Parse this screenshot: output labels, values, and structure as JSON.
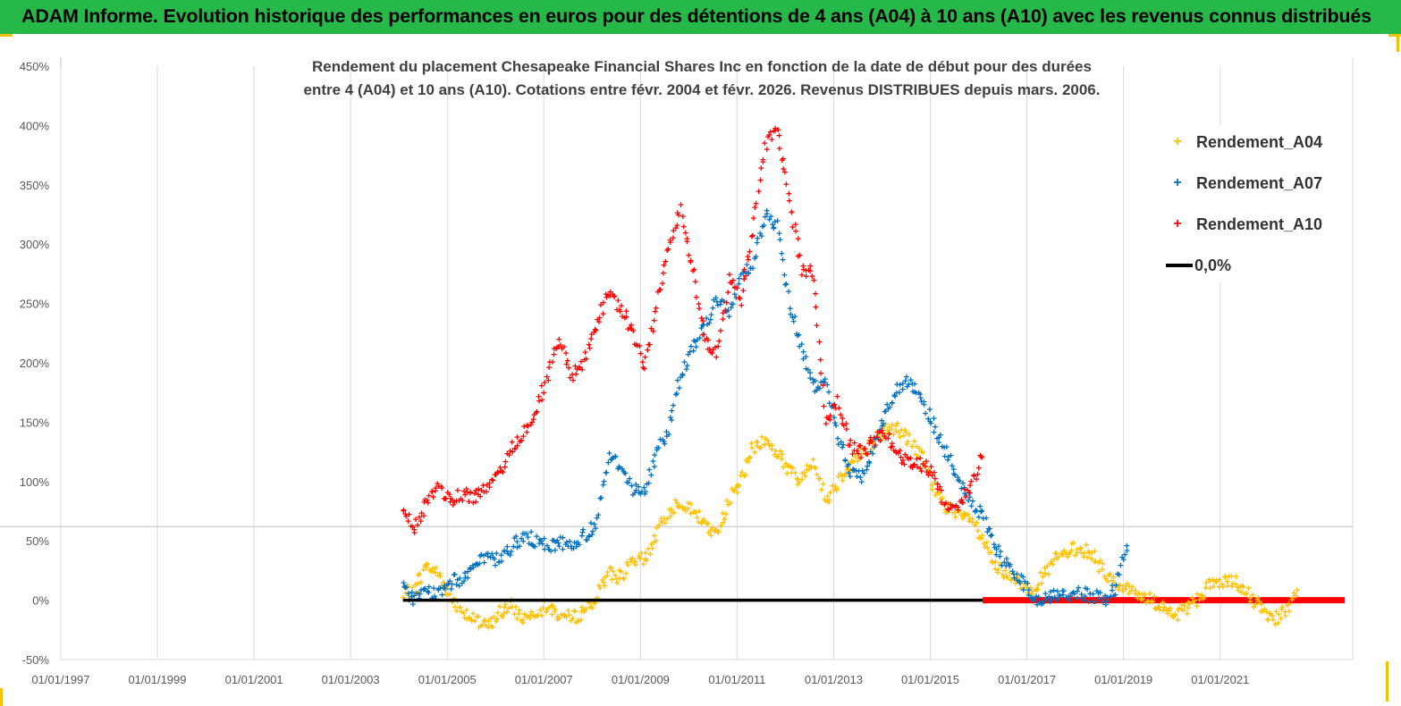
{
  "header": {
    "title": "ADAM Informe. Evolution historique des performances en euros pour des détentions de 4 ans (A04) à 10 ans (A10) avec les revenus connus distribués"
  },
  "colors": {
    "header_bg": "#27b84a",
    "a04": "#ffc000",
    "a07": "#0070c0",
    "a10": "#ff0000",
    "zero": "#000000"
  },
  "chart_data": {
    "type": "scatter",
    "title_lines": [
      "Rendement du placement Chesapeake Financial Shares Inc en fonction de la date de début pour des durées",
      "entre 4 (A04) et 10 ans (A10). Cotations entre févr. 2004 et févr. 2026. Revenus DISTRIBUES depuis mars. 2006."
    ],
    "x_ticks": [
      "01/01/1997",
      "01/01/1999",
      "01/01/2001",
      "01/01/2003",
      "01/01/2005",
      "01/01/2007",
      "01/01/2009",
      "01/01/2011",
      "01/01/2013",
      "01/01/2015",
      "01/01/2017",
      "01/01/2019",
      "01/01/2021"
    ],
    "y_ticks": [
      "-50%",
      "0%",
      "50%",
      "100%",
      "150%",
      "200%",
      "250%",
      "300%",
      "350%",
      "400%",
      "450%"
    ],
    "xlim": [
      "1997-01-01",
      "2023-09-30"
    ],
    "ylim": [
      -0.5,
      4.5
    ],
    "grid": "vertical",
    "legend_position": "top-right",
    "series": [
      {
        "name": "Rendement_A04",
        "marker": "+",
        "color": "#ffc000",
        "points": [
          [
            "2004-02",
            0.05
          ],
          [
            "2004-05",
            0.1
          ],
          [
            "2004-08",
            0.3
          ],
          [
            "2004-11",
            0.22
          ],
          [
            "2005-02",
            0.02
          ],
          [
            "2005-05",
            -0.08
          ],
          [
            "2005-08",
            -0.18
          ],
          [
            "2005-11",
            -0.22
          ],
          [
            "2006-02",
            -0.1
          ],
          [
            "2006-05",
            -0.05
          ],
          [
            "2006-08",
            -0.15
          ],
          [
            "2006-11",
            -0.08
          ],
          [
            "2007-02",
            -0.05
          ],
          [
            "2007-05",
            -0.12
          ],
          [
            "2007-08",
            -0.15
          ],
          [
            "2007-11",
            -0.08
          ],
          [
            "2008-02",
            0.02
          ],
          [
            "2008-05",
            0.25
          ],
          [
            "2008-08",
            0.2
          ],
          [
            "2008-11",
            0.32
          ],
          [
            "2009-02",
            0.35
          ],
          [
            "2009-05",
            0.55
          ],
          [
            "2009-08",
            0.75
          ],
          [
            "2009-11",
            0.85
          ],
          [
            "2010-02",
            0.75
          ],
          [
            "2010-05",
            0.65
          ],
          [
            "2010-08",
            0.55
          ],
          [
            "2010-11",
            0.85
          ],
          [
            "2011-02",
            1.0
          ],
          [
            "2011-05",
            1.3
          ],
          [
            "2011-08",
            1.35
          ],
          [
            "2011-11",
            1.25
          ],
          [
            "2012-02",
            1.1
          ],
          [
            "2012-05",
            1.0
          ],
          [
            "2012-08",
            1.2
          ],
          [
            "2012-11",
            0.85
          ],
          [
            "2013-02",
            1.0
          ],
          [
            "2013-05",
            1.15
          ],
          [
            "2013-08",
            1.25
          ],
          [
            "2013-11",
            1.35
          ],
          [
            "2014-02",
            1.45
          ],
          [
            "2014-05",
            1.45
          ],
          [
            "2014-08",
            1.35
          ],
          [
            "2014-11",
            1.2
          ],
          [
            "2015-02",
            0.95
          ],
          [
            "2015-05",
            0.8
          ],
          [
            "2015-08",
            0.7
          ],
          [
            "2015-11",
            0.7
          ],
          [
            "2016-02",
            0.5
          ],
          [
            "2016-05",
            0.3
          ],
          [
            "2016-08",
            0.2
          ],
          [
            "2016-11",
            0.15
          ],
          [
            "2017-02",
            0.1
          ],
          [
            "2017-05",
            0.2
          ],
          [
            "2017-08",
            0.35
          ],
          [
            "2017-11",
            0.4
          ],
          [
            "2018-02",
            0.45
          ],
          [
            "2018-05",
            0.4
          ],
          [
            "2018-08",
            0.25
          ],
          [
            "2018-11",
            0.15
          ],
          [
            "2019-02",
            0.1
          ],
          [
            "2019-05",
            0.05
          ],
          [
            "2019-08",
            0.0
          ],
          [
            "2019-11",
            -0.05
          ],
          [
            "2020-02",
            -0.15
          ],
          [
            "2020-05",
            -0.05
          ],
          [
            "2020-08",
            0.05
          ],
          [
            "2020-11",
            0.15
          ],
          [
            "2021-02",
            0.15
          ],
          [
            "2021-05",
            0.15
          ],
          [
            "2021-08",
            0.05
          ],
          [
            "2021-11",
            -0.05
          ],
          [
            "2022-02",
            -0.15
          ],
          [
            "2022-05",
            -0.1
          ],
          [
            "2022-08",
            0.05
          ]
        ]
      },
      {
        "name": "Rendement_A07",
        "marker": "+",
        "color": "#0070c0",
        "points": [
          [
            "2004-02",
            0.1
          ],
          [
            "2004-05",
            0.02
          ],
          [
            "2004-08",
            0.08
          ],
          [
            "2004-11",
            0.05
          ],
          [
            "2005-02",
            0.15
          ],
          [
            "2005-05",
            0.2
          ],
          [
            "2005-08",
            0.3
          ],
          [
            "2005-11",
            0.35
          ],
          [
            "2006-02",
            0.35
          ],
          [
            "2006-05",
            0.45
          ],
          [
            "2006-08",
            0.55
          ],
          [
            "2006-11",
            0.5
          ],
          [
            "2007-02",
            0.45
          ],
          [
            "2007-05",
            0.5
          ],
          [
            "2007-08",
            0.45
          ],
          [
            "2007-11",
            0.55
          ],
          [
            "2008-02",
            0.65
          ],
          [
            "2008-05",
            1.2
          ],
          [
            "2008-08",
            1.15
          ],
          [
            "2008-11",
            0.95
          ],
          [
            "2009-02",
            0.9
          ],
          [
            "2009-05",
            1.25
          ],
          [
            "2009-08",
            1.45
          ],
          [
            "2009-11",
            1.9
          ],
          [
            "2010-02",
            2.15
          ],
          [
            "2010-05",
            2.3
          ],
          [
            "2010-08",
            2.55
          ],
          [
            "2010-11",
            2.4
          ],
          [
            "2011-02",
            2.75
          ],
          [
            "2011-05",
            2.85
          ],
          [
            "2011-08",
            3.25
          ],
          [
            "2011-11",
            3.15
          ],
          [
            "2012-02",
            2.5
          ],
          [
            "2012-05",
            2.15
          ],
          [
            "2012-08",
            1.8
          ],
          [
            "2012-11",
            1.85
          ],
          [
            "2013-02",
            1.4
          ],
          [
            "2013-05",
            1.1
          ],
          [
            "2013-08",
            1.05
          ],
          [
            "2013-11",
            1.3
          ],
          [
            "2014-02",
            1.6
          ],
          [
            "2014-05",
            1.8
          ],
          [
            "2014-08",
            1.85
          ],
          [
            "2014-11",
            1.7
          ],
          [
            "2015-02",
            1.45
          ],
          [
            "2015-05",
            1.25
          ],
          [
            "2015-08",
            1.0
          ],
          [
            "2015-11",
            0.85
          ],
          [
            "2016-02",
            0.7
          ],
          [
            "2016-05",
            0.45
          ],
          [
            "2016-08",
            0.3
          ],
          [
            "2016-11",
            0.2
          ],
          [
            "2017-02",
            0.05
          ],
          [
            "2017-05",
            0.0
          ],
          [
            "2017-08",
            0.05
          ],
          [
            "2017-11",
            0.05
          ],
          [
            "2018-02",
            0.05
          ],
          [
            "2018-05",
            0.05
          ],
          [
            "2018-08",
            0.0
          ],
          [
            "2018-11",
            0.1
          ],
          [
            "2019-02",
            0.5
          ]
        ]
      },
      {
        "name": "Rendement_A10",
        "marker": "+",
        "color": "#ff0000",
        "points": [
          [
            "2004-02",
            0.75
          ],
          [
            "2004-05",
            0.6
          ],
          [
            "2004-08",
            0.85
          ],
          [
            "2004-11",
            0.95
          ],
          [
            "2005-02",
            0.85
          ],
          [
            "2005-05",
            0.9
          ],
          [
            "2005-08",
            0.88
          ],
          [
            "2005-11",
            0.95
          ],
          [
            "2006-02",
            1.05
          ],
          [
            "2006-05",
            1.3
          ],
          [
            "2006-08",
            1.4
          ],
          [
            "2006-11",
            1.6
          ],
          [
            "2007-02",
            1.9
          ],
          [
            "2007-05",
            2.2
          ],
          [
            "2007-08",
            1.9
          ],
          [
            "2007-11",
            2.0
          ],
          [
            "2008-02",
            2.3
          ],
          [
            "2008-05",
            2.6
          ],
          [
            "2008-08",
            2.45
          ],
          [
            "2008-11",
            2.3
          ],
          [
            "2009-02",
            1.95
          ],
          [
            "2009-05",
            2.5
          ],
          [
            "2009-08",
            3.0
          ],
          [
            "2009-11",
            3.3
          ],
          [
            "2010-02",
            2.8
          ],
          [
            "2010-05",
            2.2
          ],
          [
            "2010-08",
            2.1
          ],
          [
            "2010-11",
            2.7
          ],
          [
            "2011-02",
            2.55
          ],
          [
            "2011-05",
            3.1
          ],
          [
            "2011-08",
            3.85
          ],
          [
            "2011-11",
            3.95
          ],
          [
            "2012-02",
            3.4
          ],
          [
            "2012-05",
            2.8
          ],
          [
            "2012-08",
            2.75
          ],
          [
            "2012-11",
            1.5
          ],
          [
            "2013-02",
            1.7
          ],
          [
            "2013-05",
            1.3
          ],
          [
            "2013-08",
            1.25
          ],
          [
            "2013-11",
            1.35
          ],
          [
            "2014-02",
            1.4
          ],
          [
            "2014-05",
            1.25
          ],
          [
            "2014-08",
            1.15
          ],
          [
            "2014-11",
            1.15
          ],
          [
            "2015-02",
            1.05
          ],
          [
            "2015-05",
            0.8
          ],
          [
            "2015-08",
            0.8
          ],
          [
            "2015-11",
            0.95
          ],
          [
            "2016-02",
            1.25
          ]
        ]
      },
      {
        "name": "0,0%",
        "marker": "line",
        "color": "#000000",
        "points": [
          [
            "2004-02",
            0.0
          ],
          [
            "2016-02",
            0.0
          ]
        ]
      }
    ],
    "zero_markers_after": [
      "2016-02",
      "2023-08"
    ]
  }
}
